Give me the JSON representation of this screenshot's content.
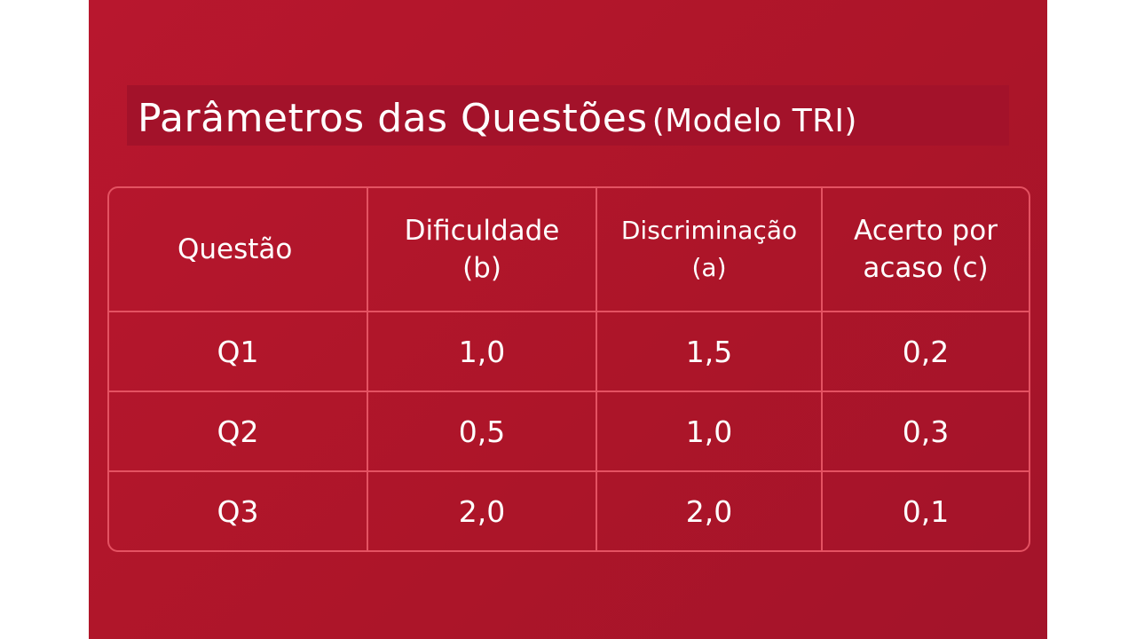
{
  "title": {
    "main": "Parâmetros das Questões",
    "sub": "(Modelo TRI)"
  },
  "table": {
    "headers": [
      [
        "Questão"
      ],
      [
        "Dificuldade",
        "(b)"
      ],
      [
        "Discriminação",
        "(a)"
      ],
      [
        "Acerto por",
        "acaso (c)"
      ]
    ],
    "rows": [
      [
        "Q1",
        "1,0",
        "1,5",
        "0,2"
      ],
      [
        "Q2",
        "0,5",
        "1,0",
        "0,3"
      ],
      [
        "Q3",
        "2,0",
        "2,0",
        "0,1"
      ]
    ]
  },
  "colors": {
    "background": "#b01830",
    "title_band": "#a3122a",
    "grid_lines": "#e45262",
    "text": "#ffffff"
  }
}
